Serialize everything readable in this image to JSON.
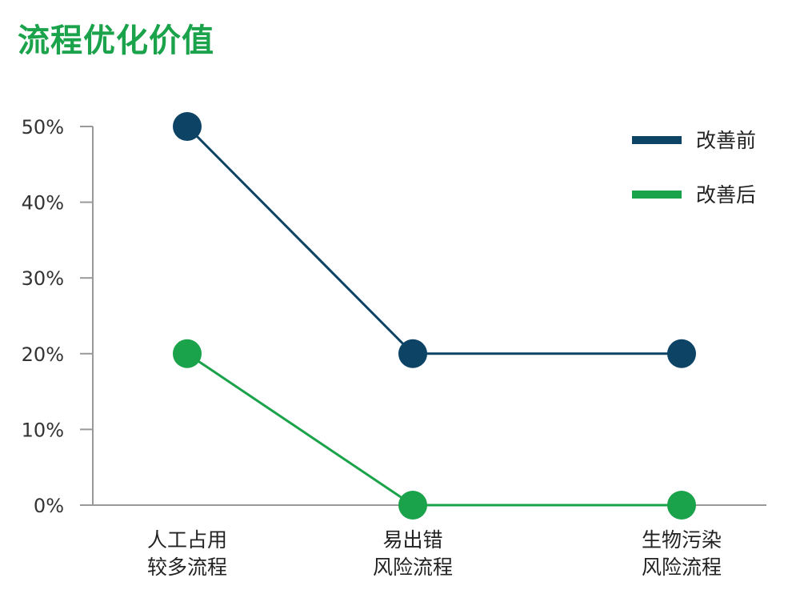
{
  "chart_data": {
    "type": "line",
    "title": "流程优化价值",
    "categories": [
      [
        "人工占用",
        "较多流程"
      ],
      [
        "易出错",
        "风险流程"
      ],
      [
        "生物污染",
        "风险流程"
      ]
    ],
    "series": [
      {
        "name": "改善前",
        "values": [
          50,
          20,
          20
        ],
        "color": "#0d4466"
      },
      {
        "name": "改善后",
        "values": [
          20,
          0,
          0
        ],
        "color": "#1aa34a"
      }
    ],
    "y_ticks": [
      "0%",
      "10%",
      "20%",
      "30%",
      "40%",
      "50%"
    ],
    "ylim": [
      0,
      50
    ],
    "grid": false,
    "legend_position": "top-right",
    "axis_color": "#999999"
  }
}
